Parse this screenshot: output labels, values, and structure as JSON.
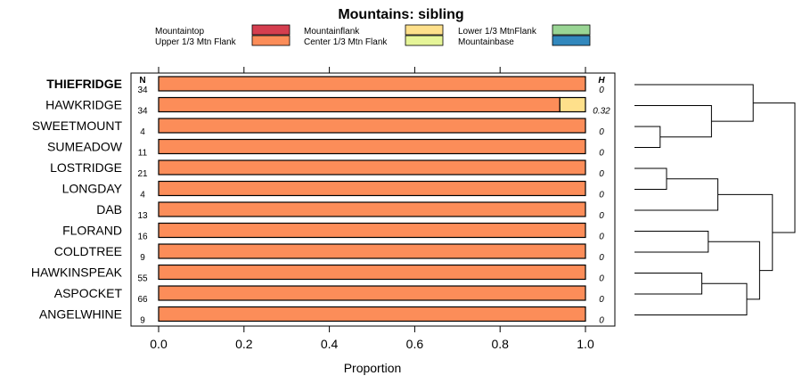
{
  "chart_data": {
    "type": "bar",
    "title": "Mountains: sibling",
    "xlabel": "Proportion",
    "xlim": [
      0,
      1
    ],
    "x_ticks": [
      0.0,
      0.2,
      0.4,
      0.6,
      0.8,
      1.0
    ],
    "x_tick_labels": [
      "0.0",
      "0.2",
      "0.4",
      "0.6",
      "0.8",
      "1.0"
    ],
    "n_header": "N",
    "h_header": "H",
    "legend_position": "top",
    "legend": [
      {
        "label": "Mountaintop",
        "color": "#d53e4f"
      },
      {
        "label": "Upper 1/3 Mtn Flank",
        "color": "#fc8d59"
      },
      {
        "label": "Mountainflank",
        "color": "#fee08b"
      },
      {
        "label": "Center 1/3 Mtn Flank",
        "color": "#e6f598"
      },
      {
        "label": "Lower 1/3 MtnFlank",
        "color": "#99d594"
      },
      {
        "label": "Mountainbase",
        "color": "#3288bd"
      }
    ],
    "rows": [
      {
        "label": "THIEFRIDGE",
        "bold": true,
        "n": "34",
        "h": "0",
        "segments": [
          {
            "category": "Upper 1/3 Mtn Flank",
            "value": 1.0
          }
        ]
      },
      {
        "label": "HAWKRIDGE",
        "bold": false,
        "n": "34",
        "h": "0.32",
        "segments": [
          {
            "category": "Upper 1/3 Mtn Flank",
            "value": 0.94
          },
          {
            "category": "Mountainflank",
            "value": 0.06
          }
        ]
      },
      {
        "label": "SWEETMOUNT",
        "bold": false,
        "n": "4",
        "h": "0",
        "segments": [
          {
            "category": "Upper 1/3 Mtn Flank",
            "value": 1.0
          }
        ]
      },
      {
        "label": "SUMEADOW",
        "bold": false,
        "n": "11",
        "h": "0",
        "segments": [
          {
            "category": "Upper 1/3 Mtn Flank",
            "value": 1.0
          }
        ]
      },
      {
        "label": "LOSTRIDGE",
        "bold": false,
        "n": "21",
        "h": "0",
        "segments": [
          {
            "category": "Upper 1/3 Mtn Flank",
            "value": 1.0
          }
        ]
      },
      {
        "label": "LONGDAY",
        "bold": false,
        "n": "4",
        "h": "0",
        "segments": [
          {
            "category": "Upper 1/3 Mtn Flank",
            "value": 1.0
          }
        ]
      },
      {
        "label": "DAB",
        "bold": false,
        "n": "13",
        "h": "0",
        "segments": [
          {
            "category": "Upper 1/3 Mtn Flank",
            "value": 1.0
          }
        ]
      },
      {
        "label": "FLORAND",
        "bold": false,
        "n": "16",
        "h": "0",
        "segments": [
          {
            "category": "Upper 1/3 Mtn Flank",
            "value": 1.0
          }
        ]
      },
      {
        "label": "COLDTREE",
        "bold": false,
        "n": "9",
        "h": "0",
        "segments": [
          {
            "category": "Upper 1/3 Mtn Flank",
            "value": 1.0
          }
        ]
      },
      {
        "label": "HAWKINSPEAK",
        "bold": false,
        "n": "55",
        "h": "0",
        "segments": [
          {
            "category": "Upper 1/3 Mtn Flank",
            "value": 1.0
          }
        ]
      },
      {
        "label": "ASPOCKET",
        "bold": false,
        "n": "66",
        "h": "0",
        "segments": [
          {
            "category": "Upper 1/3 Mtn Flank",
            "value": 1.0
          }
        ]
      },
      {
        "label": "ANGELWHINE",
        "bold": false,
        "n": "9",
        "h": "0",
        "segments": [
          {
            "category": "Upper 1/3 Mtn Flank",
            "value": 1.0
          }
        ]
      }
    ],
    "dendrogram": {
      "merges": [
        {
          "a": 2,
          "b": 3,
          "height": 0.08
        },
        {
          "a": 4,
          "b": 5,
          "height": 0.1
        },
        {
          "a": 9,
          "b": 10,
          "height": 0.21
        },
        {
          "a": 7,
          "b": 8,
          "height": 0.23
        },
        {
          "a": 1,
          "b": -1,
          "height": 0.24
        },
        {
          "a": -2,
          "b": 6,
          "height": 0.26
        },
        {
          "a": -3,
          "b": 11,
          "height": 0.35
        },
        {
          "a": 0,
          "b": -5,
          "height": 0.37
        },
        {
          "a": -4,
          "b": -7,
          "height": 0.39
        },
        {
          "a": -6,
          "b": -9,
          "height": 0.43
        },
        {
          "a": -8,
          "b": -10,
          "height": 0.5
        }
      ]
    }
  }
}
